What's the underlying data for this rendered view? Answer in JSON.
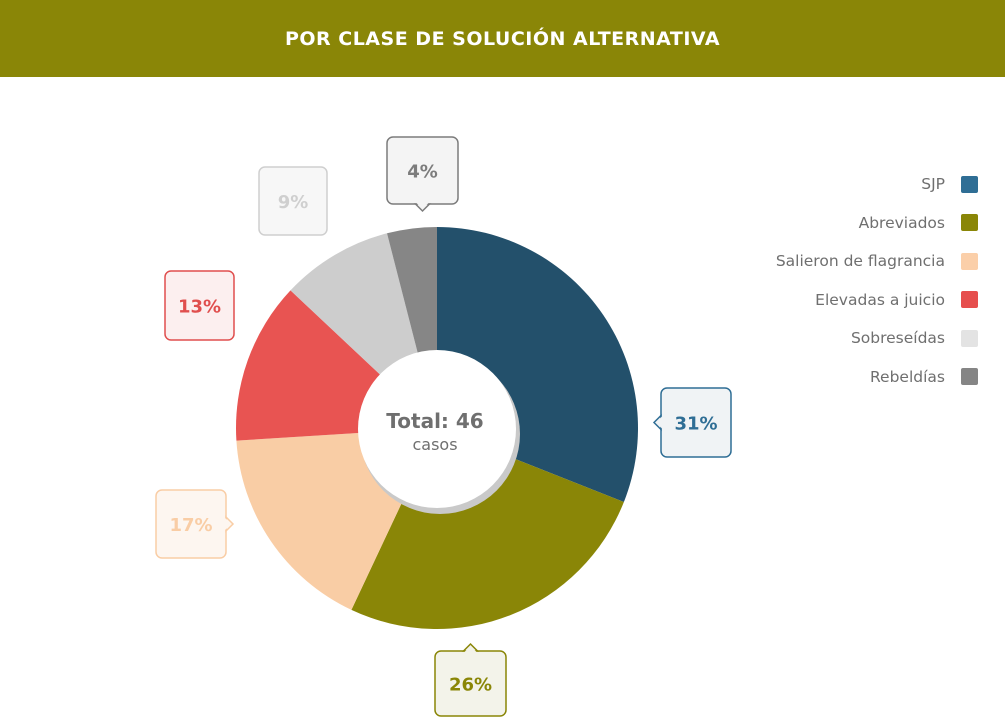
{
  "header": {
    "title": "POR CLASE DE SOLUCIÓN ALTERNATIVA"
  },
  "center": {
    "total_label": "Total: 46",
    "unit_label": "casos"
  },
  "chart_data": {
    "type": "pie",
    "donut": true,
    "legend_position": "top-right",
    "slices": [
      {
        "label": "SJP",
        "value": 31,
        "display": "31%",
        "color": "#23506b",
        "legend_color": "#2f6e95",
        "label_color": "#2f6e95",
        "callout_bg": "#f0f3f5"
      },
      {
        "label": "Abreviados",
        "value": 26,
        "display": "26%",
        "color": "#8a8607",
        "legend_color": "#8a8607",
        "label_color": "#8a8607",
        "callout_bg": "#f3f3ea"
      },
      {
        "label": "Salieron de flagrancia",
        "value": 17,
        "display": "17%",
        "color": "#f9cda5",
        "legend_color": "#fbcfa9",
        "label_color": "#f9cda5",
        "callout_bg": "#fdf6f0"
      },
      {
        "label": "Elevadas a juicio",
        "value": 13,
        "display": "13%",
        "color": "#e85452",
        "legend_color": "#e64e4d",
        "label_color": "#e04f4e",
        "callout_bg": "#fcefef"
      },
      {
        "label": "Sobreseídas",
        "value": 9,
        "display": "9%",
        "color": "#cdcdcd",
        "legend_color": "#e3e3e3",
        "label_color": "#cfcfcf",
        "callout_bg": "#f7f7f7"
      },
      {
        "label": "Rebeldías",
        "value": 4,
        "display": "4%",
        "color": "#868686",
        "legend_color": "#858585",
        "label_color": "#7c7c7c",
        "callout_bg": "#f4f4f4"
      }
    ]
  }
}
